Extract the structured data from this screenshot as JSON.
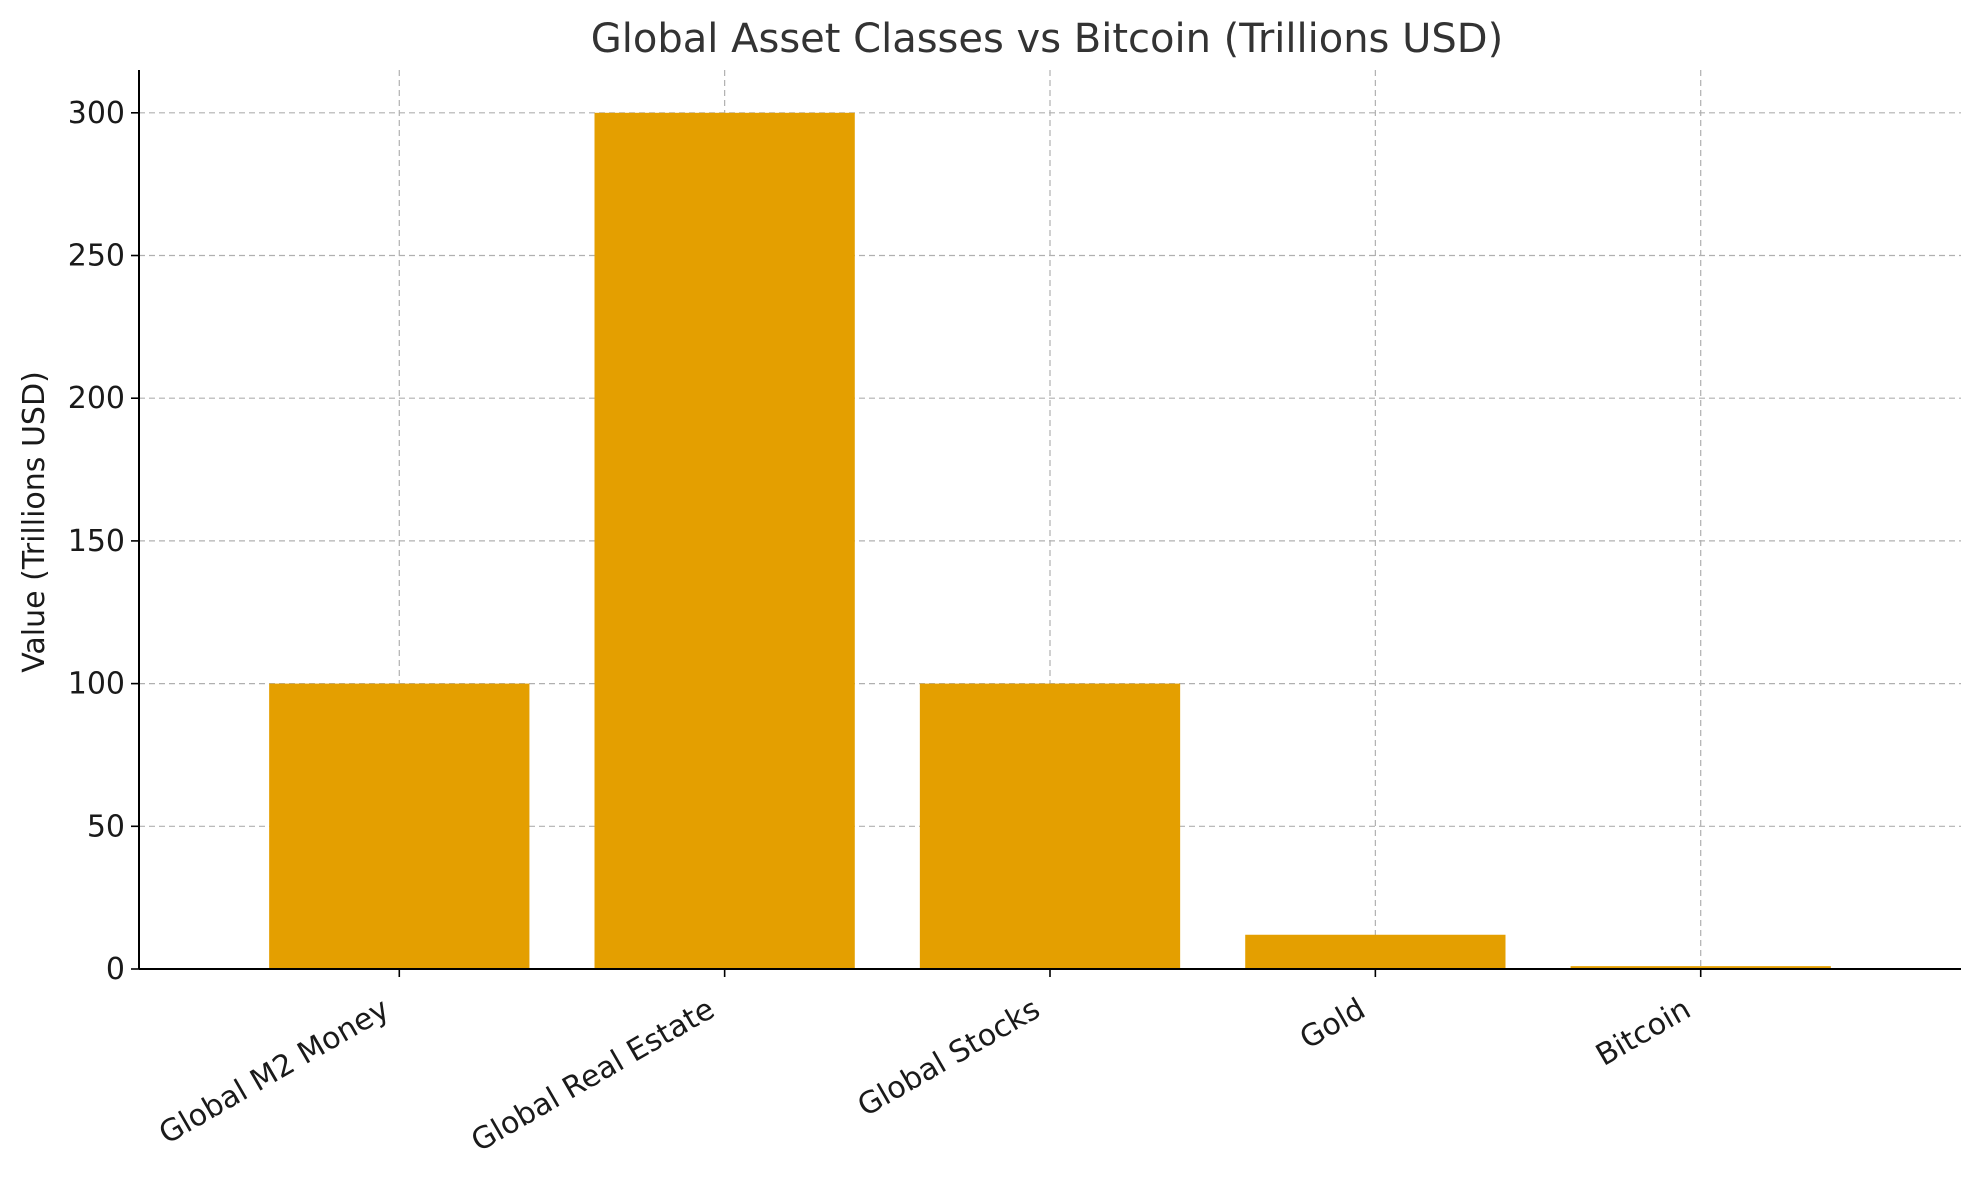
{
  "chart_data": {
    "type": "bar",
    "title": "Global Asset Classes vs Bitcoin (Trillions USD)",
    "xlabel": "",
    "ylabel": "Value (Trillions USD)",
    "categories": [
      "Global M2 Money",
      "Global Real Estate",
      "Global Stocks",
      "Gold",
      "Bitcoin"
    ],
    "values": [
      100,
      300,
      100,
      12,
      1
    ],
    "ylim": [
      0,
      315
    ],
    "yticks": [
      0,
      50,
      100,
      150,
      200,
      250,
      300
    ],
    "grid": true,
    "bar_color": "#e49f00"
  }
}
